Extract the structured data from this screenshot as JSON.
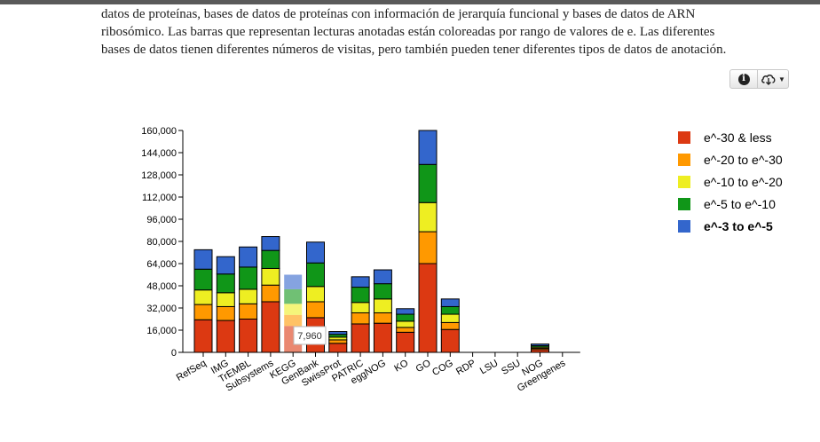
{
  "description": {
    "line1": "datos de proteínas, bases de datos de proteínas con información de jerarquía funcional y bases de datos de ARN",
    "line2": "ribosómico. Las barras que representan lecturas anotadas están coloreadas por rango de valores de e. Las diferentes",
    "line3": "bases de datos tienen diferentes números de visitas, pero también pueden tener diferentes tipos de datos de anotación."
  },
  "toolbar": {
    "info_icon": "info-icon",
    "download_icon": "cloud-download-icon",
    "info_glyph": "i"
  },
  "tooltip": {
    "text": "7,960"
  },
  "chart_data": {
    "type": "bar",
    "stacked": true,
    "categories": [
      "RefSeq",
      "IMG",
      "TrEMBL",
      "Subsystems",
      "KEGG",
      "GenBank",
      "SwissProt",
      "PATRIC",
      "eggNOG",
      "KO",
      "GO",
      "COG",
      "RDP",
      "LSU",
      "SSU",
      "NOG",
      "Greengenes"
    ],
    "series": [
      {
        "name": "e^-30 & less",
        "color": "#dc3912",
        "values": [
          23500,
          23000,
          24000,
          36500,
          19000,
          25000,
          6500,
          20500,
          21000,
          14500,
          64000,
          16500,
          0,
          0,
          0,
          2000,
          0
        ]
      },
      {
        "name": "e^-20 to e^-30",
        "color": "#ff9900",
        "values": [
          11000,
          10000,
          11000,
          12000,
          8000,
          11500,
          2500,
          8000,
          7500,
          3500,
          23000,
          5000,
          0,
          0,
          0,
          1000,
          0
        ]
      },
      {
        "name": "e^-10 to e^-20",
        "color": "#eeee22",
        "values": [
          10500,
          10000,
          10500,
          12000,
          8000,
          11000,
          2000,
          7500,
          10000,
          4500,
          21000,
          6000,
          0,
          0,
          0,
          800,
          0
        ]
      },
      {
        "name": "e^-5 to e^-10",
        "color": "#109618",
        "values": [
          15000,
          13500,
          16000,
          13000,
          10500,
          17000,
          2000,
          11000,
          11000,
          5000,
          27500,
          5500,
          0,
          0,
          0,
          1000,
          0
        ]
      },
      {
        "name": "e^-3 to e^-5",
        "color": "#3366cc",
        "values": [
          14000,
          12500,
          14500,
          10000,
          10500,
          15000,
          2000,
          7500,
          10000,
          4000,
          24500,
          5500,
          0,
          0,
          0,
          1200,
          0
        ]
      }
    ],
    "highlighted_category": "KEGG",
    "bold_legend_series": "e^-3 to e^-5",
    "yticks": [
      0,
      16000,
      32000,
      48000,
      64000,
      80000,
      96000,
      112000,
      128000,
      144000,
      160000
    ],
    "ytick_labels": [
      "0",
      "16,000",
      "32,000",
      "48,000",
      "64,000",
      "80,000",
      "96,000",
      "112,000",
      "128,000",
      "144,000",
      "160,000"
    ],
    "ylim": [
      0,
      160000
    ],
    "legend_position": "right",
    "grid": false
  }
}
